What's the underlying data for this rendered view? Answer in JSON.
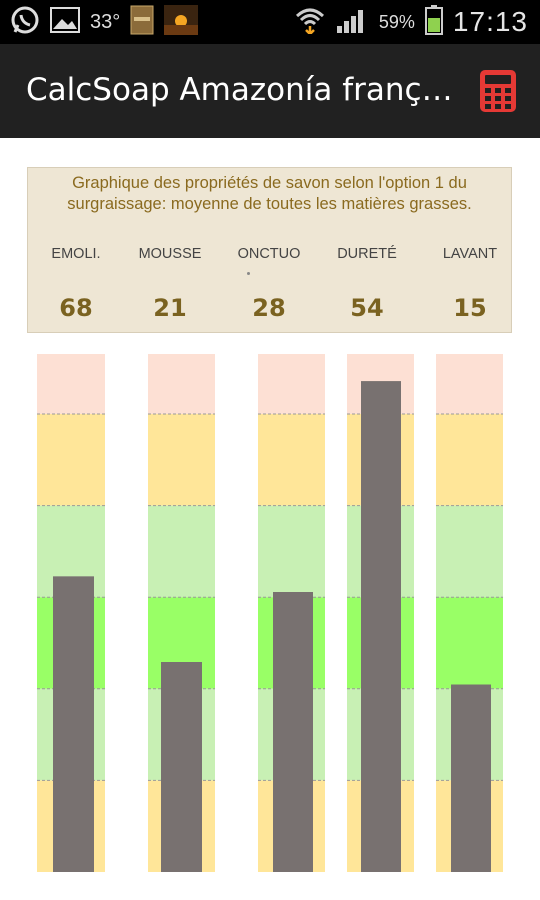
{
  "status_bar": {
    "temperature": "33°",
    "battery_percent": "59%",
    "time": "17:13",
    "icons": [
      "whatsapp-icon",
      "gallery-icon",
      "weather-icon",
      "app-icon",
      "sunset-icon",
      "wifi-icon",
      "signal-icon",
      "battery-icon"
    ]
  },
  "action_bar": {
    "title": "CalcSoap Amazonía franç…",
    "action_icon": "calculator-icon",
    "action_color": "#e53935"
  },
  "panel": {
    "description": "Graphique des propriétés de savon selon l'option 1 du surgraissage: moyenne de toutes les matières grasses.",
    "properties": [
      {
        "label": "EMOLI.",
        "value": "68"
      },
      {
        "label": "MOUSSE",
        "value": "21"
      },
      {
        "label": "ONCTUO",
        "value": "28"
      },
      {
        "label": "DURETÉ",
        "value": "54"
      },
      {
        "label": "LAVANT",
        "value": "15"
      }
    ]
  },
  "chart_data": {
    "type": "bar",
    "categories": [
      "EMOLI.",
      "MOUSSE",
      "ONCTUO",
      "DURETÉ",
      "LAVANT"
    ],
    "values": [
      68,
      21,
      28,
      54,
      15
    ],
    "columns": [
      {
        "zones": [
          0,
          20,
          40,
          60,
          80,
          100,
          120,
          140,
          160
        ],
        "max_displayed": 115
      },
      {
        "zones": [
          0,
          10,
          20,
          30,
          40,
          50,
          60,
          70,
          80
        ],
        "max_displayed": 50
      },
      {
        "zones": [
          0,
          10,
          20,
          30,
          40,
          50,
          60,
          70,
          80
        ],
        "max_displayed": 50
      },
      {
        "zones": [
          0,
          10,
          20,
          30,
          40,
          50,
          60,
          70,
          80
        ],
        "max_displayed": 55
      },
      {
        "zones": [
          0,
          10,
          20,
          30,
          40,
          50,
          60,
          70,
          80
        ],
        "max_displayed": 40
      }
    ],
    "zone_colors": [
      "#ffe699",
      "#c8f0b4",
      "#99ff66",
      "#c8f0b4",
      "#ffe699",
      "#fde0d4"
    ],
    "bar_color": "#787170"
  }
}
